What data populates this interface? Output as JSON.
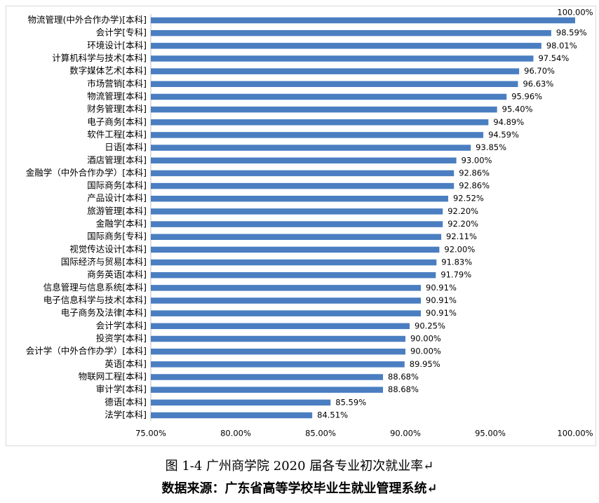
{
  "chart_data": {
    "type": "bar",
    "orientation": "horizontal",
    "categories": [
      "物流管理(中外合作办学)[本科]",
      "会计学[专科]",
      "环境设计[本科]",
      "计算机科学与技术[本科]",
      "数字媒体艺术[本科]",
      "市场营销[本科]",
      "物流管理[本科]",
      "财务管理[本科]",
      "电子商务[本科]",
      "软件工程[本科]",
      "日语[本科]",
      "酒店管理[本科]",
      "金融学（中外合作办学）[本科]",
      "国际商务[本科]",
      "产品设计[本科]",
      "旅游管理[本科]",
      "金融学[本科]",
      "国际商务[专科]",
      "视觉传达设计[本科]",
      "国际经济与贸易[本科]",
      "商务英语[本科]",
      "信息管理与信息系统[本科]",
      "电子信息科学与技术[本科]",
      "电子商务及法律[本科]",
      "会计学[本科]",
      "投资学[本科]",
      "会计学（中外合作办学）[本科]",
      "英语[本科]",
      "物联网工程[本科]",
      "审计学[本科]",
      "德语[本科]",
      "法学[本科]"
    ],
    "values": [
      100.0,
      98.59,
      98.01,
      97.54,
      96.7,
      96.63,
      95.96,
      95.4,
      94.89,
      94.59,
      93.85,
      93.0,
      92.86,
      92.86,
      92.52,
      92.2,
      92.2,
      92.11,
      92.0,
      91.83,
      91.79,
      90.91,
      90.91,
      90.91,
      90.25,
      90.0,
      90.0,
      89.95,
      88.68,
      88.68,
      85.59,
      84.51
    ],
    "value_labels": [
      "100.00%",
      "98.59%",
      "98.01%",
      "97.54%",
      "96.70%",
      "96.63%",
      "95.96%",
      "95.40%",
      "94.89%",
      "94.59%",
      "93.85%",
      "93.00%",
      "92.86%",
      "92.86%",
      "92.52%",
      "92.20%",
      "92.20%",
      "92.11%",
      "92.00%",
      "91.83%",
      "91.79%",
      "90.91%",
      "90.91%",
      "90.91%",
      "90.25%",
      "90.00%",
      "90.00%",
      "89.95%",
      "88.68%",
      "88.68%",
      "85.59%",
      "84.51%"
    ],
    "color": "#4a7ec1",
    "xlim": [
      75,
      100
    ],
    "xticks": [
      {
        "value": 75,
        "label": "75.00%"
      },
      {
        "value": 80,
        "label": "80.00%"
      },
      {
        "value": 85,
        "label": "85.00%"
      },
      {
        "value": 90,
        "label": "90.00%"
      },
      {
        "value": 95,
        "label": "95.00%"
      },
      {
        "value": 100,
        "label": "100.00%"
      }
    ],
    "grid": false
  },
  "captions": {
    "figure": "图 1-4 广州商学院 2020 届各专业初次就业率↵",
    "source": "数据来源：广东省高等学校毕业生就业管理系统↵"
  }
}
